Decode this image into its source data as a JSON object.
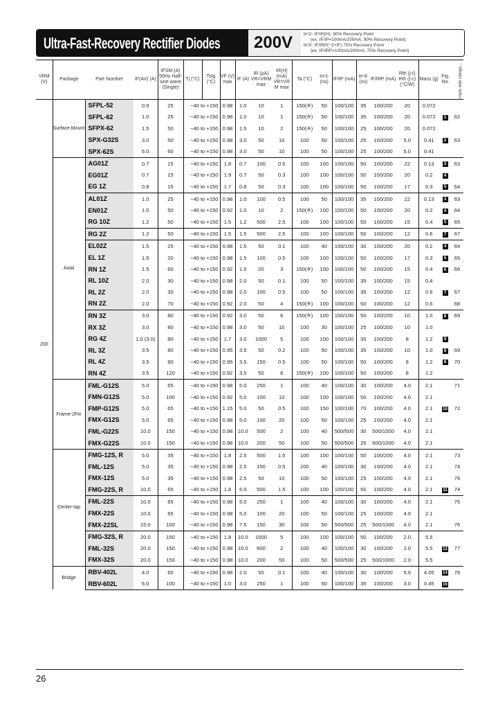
{
  "title": "Ultra-Fast-Recovery Rectifier Diodes",
  "voltage": "200V",
  "notes": [
    "trr①: IF/IR(H): 90% Recovery Point",
    "(ex. IF/IP=100mA/100mA, 90% Recovery Point)",
    "trr②: IF/IRP(−2×IF) 75% Recovery Point",
    "(ex. IF/IRP=100mA/200mA, 75% Recovery Point)"
  ],
  "headers": {
    "vrm": "VRM (V)",
    "package": "Package",
    "part": "Part Number",
    "io": "IF(AV) (A)",
    "ifsm": "IFSM (A) 50Hz Half-sine wave (Single)",
    "tj": "Tj (°C)",
    "tstg": "Tstg (°C)",
    "vf": "VF (V) max",
    "if": "IF (A)",
    "ir": "IR (μA) VR=VRM max",
    "irh": "IR(H) (mA) VR=VRM max",
    "ta": "Ta (°C)",
    "trr1": "trr① (ns)",
    "ifip": "IF/IP (mA)",
    "trr2": "trr② (ns)",
    "ifirp": "IF/IRP (mA)",
    "rth": "Rth (j-ℓ) Rth (j-c) (°C/W)",
    "mass": "Mass (g)",
    "fig": "Fig. No.",
    "note": "Parts with ratings..."
  },
  "vrm": "200",
  "packages": [
    {
      "label": "Surface Mount",
      "rows": 5
    },
    {
      "label": "Axial",
      "rows": 19
    },
    {
      "label": "Frame-2Fin",
      "rows": 6
    },
    {
      "label": "Center-tap",
      "rows": 10
    },
    {
      "label": "Bridge",
      "rows": 2
    }
  ],
  "tj_range": "−40 to +150",
  "rows": [
    [
      "SFPL-52",
      "0.9",
      "25",
      "0.98",
      "1.0",
      "10",
      "1",
      "150(※)",
      "50",
      "100/100",
      "35",
      "100/200",
      "20",
      "0.072",
      "",
      ""
    ],
    [
      "SFPL-62",
      "1.0",
      "25",
      "0.98",
      "1.0",
      "10",
      "1",
      "150(※)",
      "50",
      "100/100",
      "35",
      "100/200",
      "20",
      "0.072",
      "1",
      "62"
    ],
    [
      "SFPX-62",
      "1.5",
      "50",
      "0.98",
      "1.5",
      "10",
      "2",
      "150(※)",
      "50",
      "100/100",
      "25",
      "100/200",
      "20",
      "0.072",
      "",
      ""
    ],
    [
      "SPX-G32S",
      "3.0",
      "50",
      "0.98",
      "3.0",
      "50",
      "10",
      "100",
      "50",
      "100/100",
      "25",
      "100/200",
      "5.0",
      "0.41",
      "2",
      "63"
    ],
    [
      "SPX-62S",
      "6.0",
      "60",
      "0.98",
      "3.0",
      "50",
      "10",
      "100",
      "50",
      "100/100",
      "25",
      "100/200",
      "5.0",
      "0.41",
      "",
      ""
    ],
    [
      "AG01Z",
      "0.7",
      "15",
      "1.8",
      "0.7",
      "100",
      "0.5",
      "100",
      "100",
      "100/100",
      "50",
      "100/200",
      "22",
      "0.13",
      "3",
      "63"
    ],
    [
      "EG01Z",
      "0.7",
      "15",
      "1.9",
      "0.7",
      "50",
      "0.3",
      "100",
      "100",
      "100/100",
      "50",
      "100/200",
      "20",
      "0.2",
      "4",
      ""
    ],
    [
      "EG 1Z",
      "0.8",
      "15",
      "1.7",
      "0.8",
      "50",
      "0.3",
      "100",
      "100",
      "100/100",
      "50",
      "100/200",
      "17",
      "0.3",
      "5",
      "64"
    ],
    [
      "AL01Z",
      "1.0",
      "25",
      "0.98",
      "1.0",
      "100",
      "0.5",
      "100",
      "50",
      "100/100",
      "35",
      "100/200",
      "22",
      "0.13",
      "3",
      "63"
    ],
    [
      "EN01Z",
      "1.0",
      "50",
      "0.92",
      "1.0",
      "10",
      "2",
      "150(※)",
      "100",
      "100/100",
      "50",
      "100/200",
      "20",
      "0.2",
      "4",
      "64"
    ],
    [
      "RG 10Z",
      "1.2",
      "50",
      "1.5",
      "1.2",
      "500",
      "2.5",
      "100",
      "100",
      "100/100",
      "50",
      "100/200",
      "15",
      "0.4",
      "5",
      "65"
    ],
    [
      "RG 2Z",
      "1.2",
      "50",
      "1.5",
      "1.5",
      "500",
      "2.5",
      "100",
      "100",
      "100/100",
      "50",
      "100/200",
      "12",
      "0.6",
      "7",
      "67"
    ],
    [
      "EL02Z",
      "1.5",
      "25",
      "0.98",
      "1.5",
      "50",
      "0.1",
      "100",
      "40",
      "100/100",
      "30",
      "100/200",
      "20",
      "0.2",
      "4",
      "64"
    ],
    [
      "EL 1Z",
      "1.5",
      "20",
      "0.98",
      "1.5",
      "100",
      "0.5",
      "100",
      "100",
      "100/100",
      "50",
      "100/200",
      "17",
      "0.3",
      "5",
      "65"
    ],
    [
      "RN 1Z",
      "1.5",
      "60",
      "0.92",
      "1.5",
      "20",
      "3",
      "150(※)",
      "100",
      "100/100",
      "50",
      "100/200",
      "15",
      "0.4",
      "6",
      "66"
    ],
    [
      "RL 10Z",
      "2.0",
      "30",
      "0.98",
      "2.0",
      "50",
      "0.1",
      "100",
      "50",
      "100/100",
      "35",
      "100/200",
      "15",
      "0.4",
      "",
      ""
    ],
    [
      "RL 2Z",
      "2.0",
      "30",
      "0.98",
      "2.0",
      "100",
      "0.5",
      "100",
      "50",
      "100/100",
      "35",
      "100/200",
      "12",
      "0.6",
      "7",
      "67"
    ],
    [
      "RN 2Z",
      "2.0",
      "70",
      "0.92",
      "2.0",
      "50",
      "4",
      "150(※)",
      "100",
      "100/100",
      "50",
      "100/200",
      "12",
      "0.6",
      "",
      "68"
    ],
    [
      "RN 3Z",
      "3.0",
      "80",
      "0.92",
      "3.0",
      "50",
      "6",
      "150(※)",
      "100",
      "100/100",
      "50",
      "100/200",
      "10",
      "1.0",
      "8",
      "69"
    ],
    [
      "RX 3Z",
      "3.0",
      "80",
      "0.98",
      "3.0",
      "50",
      "10",
      "100",
      "30",
      "100/100",
      "25",
      "100/200",
      "10",
      "1.0",
      "",
      ""
    ],
    [
      "RG 4Z",
      "1.0 (3.0)",
      "80",
      "1.7",
      "3.0",
      "1000",
      "5",
      "100",
      "100",
      "100/100",
      "35",
      "100/200",
      "8",
      "1.2",
      "9",
      ""
    ],
    [
      "RL 3Z",
      "3.5",
      "80",
      "0.95",
      "3.5",
      "50",
      "0.2",
      "100",
      "50",
      "100/100",
      "35",
      "100/200",
      "10",
      "1.0",
      "8",
      "69"
    ],
    [
      "RL 4Z",
      "3.5",
      "80",
      "0.95",
      "3.5",
      "150",
      "0.5",
      "100",
      "50",
      "100/100",
      "50",
      "100/200",
      "8",
      "1.2",
      "8",
      "70"
    ],
    [
      "RN 4Z",
      "3.5",
      "120",
      "0.92",
      "3.5",
      "50",
      "6",
      "150(※)",
      "100",
      "100/100",
      "50",
      "100/200",
      "8",
      "1.2",
      "",
      ""
    ],
    [
      "FML-G12S",
      "5.0",
      "65",
      "0.98",
      "5.0",
      "250",
      "1",
      "100",
      "40",
      "100/100",
      "30",
      "100/200",
      "4.0",
      "2.1",
      "",
      "71"
    ],
    [
      "FMN-G12S",
      "5.0",
      "100",
      "0.92",
      "5.0",
      "100",
      "10",
      "100",
      "100",
      "100/100",
      "50",
      "100/200",
      "4.0",
      "2.1",
      "",
      ""
    ],
    [
      "FMP-G12S",
      "5.0",
      "65",
      "1.15",
      "5.0",
      "50",
      "0.5",
      "100",
      "150",
      "100/100",
      "70",
      "100/200",
      "4.0",
      "2.1",
      "10",
      "72"
    ],
    [
      "FMX-G12S",
      "5.0",
      "65",
      "0.98",
      "5.0",
      "100",
      "20",
      "100",
      "50",
      "100/100",
      "25",
      "100/200",
      "4.0",
      "2.1",
      "",
      ""
    ],
    [
      "FML-G22S",
      "10.0",
      "150",
      "0.98",
      "10.0",
      "500",
      "2",
      "100",
      "40",
      "500/500",
      "30",
      "500/1000",
      "4.0",
      "2.1",
      "",
      ""
    ],
    [
      "FMX-G22S",
      "10.0",
      "150",
      "0.98",
      "10.0",
      "200",
      "50",
      "100",
      "50",
      "500/500",
      "25",
      "500/1000",
      "4.0",
      "2.1",
      "",
      ""
    ],
    [
      "FMG-12S, R",
      "5.0",
      "35",
      "1.8",
      "2.5",
      "500",
      "1.5",
      "100",
      "100",
      "100/100",
      "50",
      "100/200",
      "4.0",
      "2.1",
      "",
      "73"
    ],
    [
      "FML-12S",
      "5.0",
      "35",
      "0.98",
      "2.5",
      "150",
      "0.5",
      "100",
      "40",
      "100/100",
      "30",
      "100/200",
      "4.0",
      "2.1",
      "",
      "74"
    ],
    [
      "FMX-12S",
      "5.0",
      "35",
      "0.98",
      "2.5",
      "50",
      "10",
      "100",
      "50",
      "100/100",
      "25",
      "100/200",
      "4.0",
      "2.1",
      "",
      "76"
    ],
    [
      "FMG-22S, R",
      "10.0",
      "65",
      "1.8",
      "5.0",
      "500",
      "1.5",
      "100",
      "100",
      "100/100",
      "50",
      "100/200",
      "4.0",
      "2.1",
      "11",
      "74"
    ],
    [
      "FML-22S",
      "10.0",
      "65",
      "0.98",
      "5.0",
      "250",
      "1",
      "100",
      "40",
      "100/100",
      "30",
      "100/200",
      "4.0",
      "2.1",
      "",
      "75"
    ],
    [
      "FMX-22S",
      "10.0",
      "65",
      "0.98",
      "5.0",
      "100",
      "20",
      "100",
      "50",
      "100/100",
      "25",
      "100/200",
      "4.0",
      "2.1",
      "",
      ""
    ],
    [
      "FMX-22SL",
      "15.0",
      "100",
      "0.98",
      "7.5",
      "150",
      "30",
      "100",
      "50",
      "500/500",
      "25",
      "500/1000",
      "4.0",
      "2.1",
      "",
      "76"
    ],
    [
      "FMG-32S, R",
      "20.0",
      "150",
      "1.8",
      "10.0",
      "1000",
      "5",
      "100",
      "100",
      "100/100",
      "50",
      "100/200",
      "2.0",
      "5.5",
      "",
      ""
    ],
    [
      "FML-32S",
      "20.0",
      "150",
      "0.98",
      "10.0",
      "600",
      "2",
      "100",
      "40",
      "100/100",
      "30",
      "100/200",
      "2.0",
      "5.5",
      "12",
      "77"
    ],
    [
      "FMX-32S",
      "20.0",
      "150",
      "0.98",
      "10.0",
      "200",
      "50",
      "100",
      "50",
      "500/500",
      "25",
      "500/1000",
      "2.0",
      "5.5",
      "",
      ""
    ],
    [
      "RBV-402L",
      "4.0",
      "60",
      "0.98",
      "2.0",
      "50",
      "0.1",
      "100",
      "40",
      "100/100",
      "30",
      "100/200",
      "5.0",
      "4.05",
      "13",
      "78"
    ],
    [
      "RBV-602L",
      "6.0",
      "100",
      "1.0",
      "3.0",
      "250",
      "1",
      "100",
      "50",
      "100/100",
      "35",
      "100/200",
      "3.0",
      "0.45",
      "15",
      ""
    ]
  ],
  "separators": [
    5,
    8,
    11,
    12,
    18,
    24,
    30,
    34,
    37,
    40
  ],
  "page_number": "26"
}
